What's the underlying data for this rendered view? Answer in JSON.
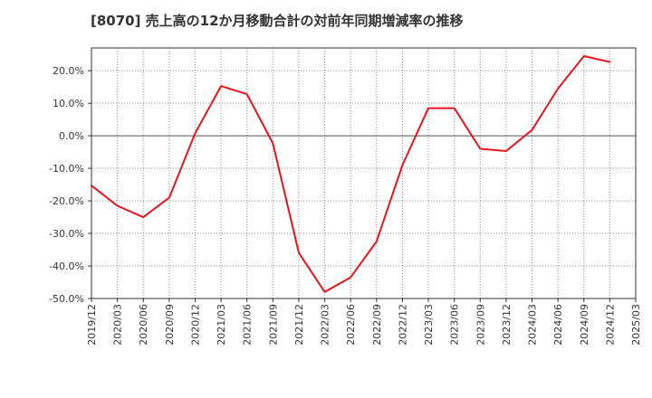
{
  "title": "[8070]  売上高の12か月移動合計の対前年同期増減率の推移",
  "colors": {
    "line": "#e8141b",
    "grid": "#888888",
    "zero_line": "#555555",
    "axis": "#333333"
  },
  "chart_data": {
    "type": "line",
    "title": "[8070]  売上高の12か月移動合計の対前年同期増減率の推移",
    "xlabel": "",
    "ylabel": "",
    "ylim": [
      -50,
      27
    ],
    "y_ticks": [
      -50,
      -40,
      -30,
      -20,
      -10,
      0,
      10,
      20
    ],
    "y_tick_labels": [
      "-50.0%",
      "-40.0%",
      "-30.0%",
      "-20.0%",
      "-10.0%",
      "0.0%",
      "10.0%",
      "20.0%"
    ],
    "x_tick_labels": [
      "2019/12",
      "2020/03",
      "2020/06",
      "2020/09",
      "2020/12",
      "2021/03",
      "2021/06",
      "2021/09",
      "2021/12",
      "2022/03",
      "2022/06",
      "2022/09",
      "2022/12",
      "2023/03",
      "2023/06",
      "2023/09",
      "2023/12",
      "2024/03",
      "2024/06",
      "2024/09",
      "2024/12",
      "2025/03"
    ],
    "grid": true,
    "series": [
      {
        "name": "対前年同期増減率",
        "x": [
          "2019/12",
          "2020/03",
          "2020/06",
          "2020/09",
          "2020/12",
          "2021/03",
          "2021/06",
          "2021/09",
          "2021/12",
          "2022/03",
          "2022/06",
          "2022/09",
          "2022/12",
          "2023/03",
          "2023/06",
          "2023/09",
          "2023/12",
          "2024/03",
          "2024/06",
          "2024/09",
          "2024/12"
        ],
        "values": [
          -15.3,
          -21.5,
          -25.0,
          -19.0,
          0.8,
          15.3,
          12.8,
          -2.3,
          -36.0,
          -48.0,
          -43.5,
          -32.5,
          -9.0,
          8.5,
          8.5,
          -4.0,
          -4.7,
          1.8,
          14.5,
          24.5,
          22.7
        ]
      }
    ]
  }
}
